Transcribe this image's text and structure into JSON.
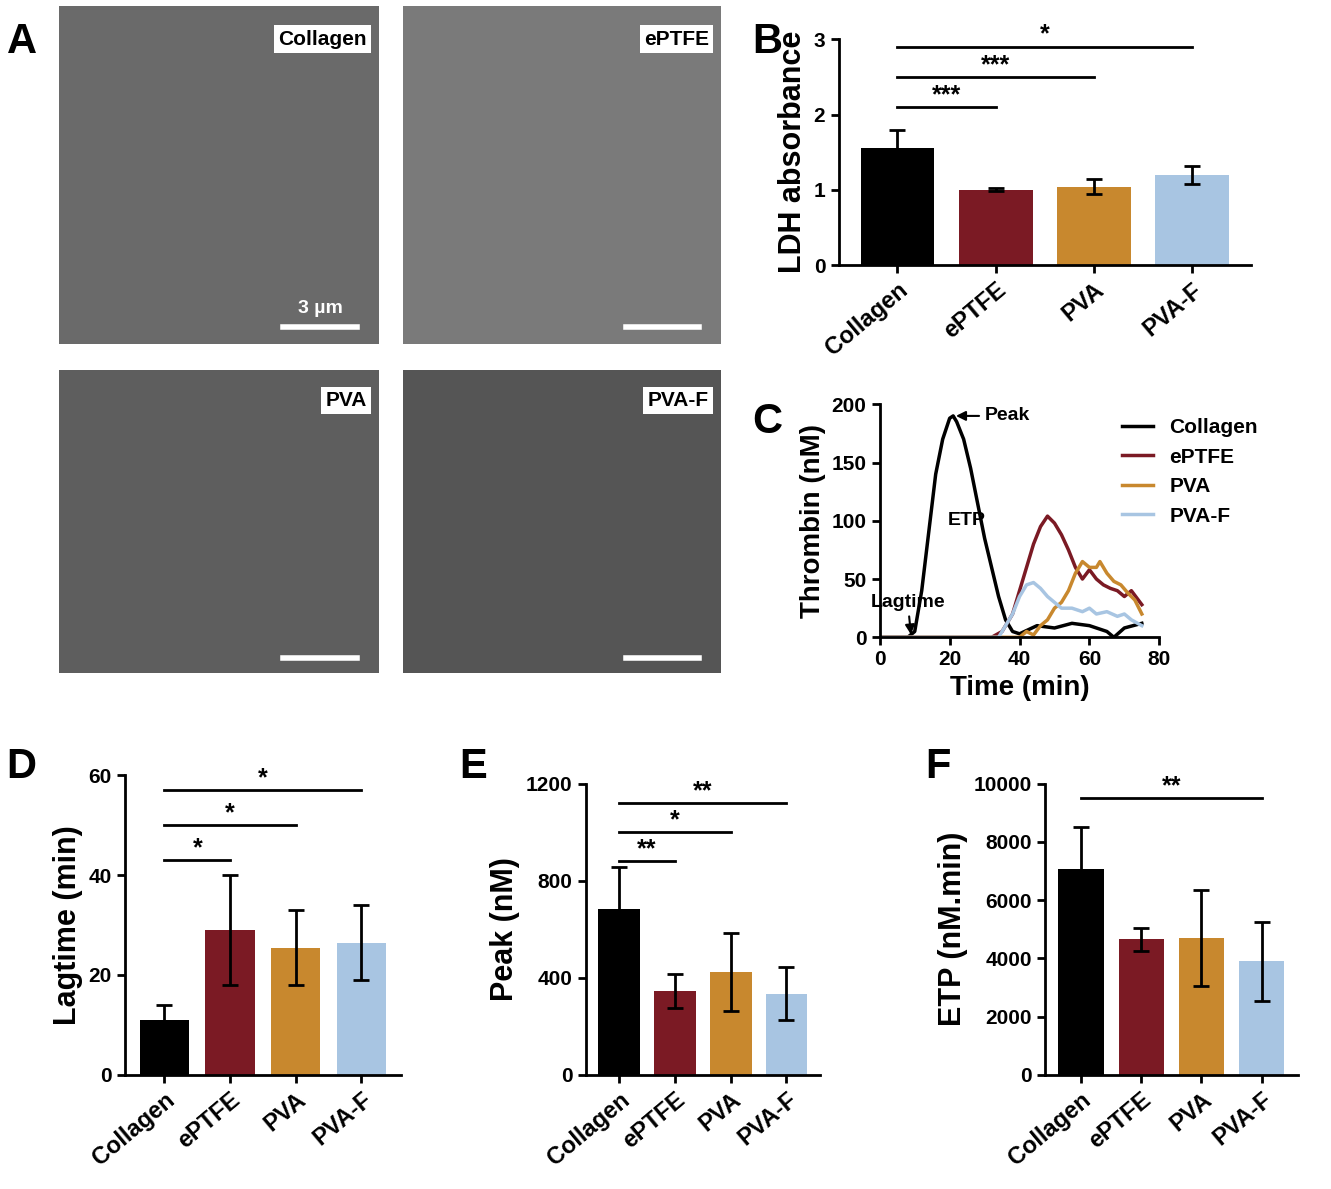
{
  "chart_data": [
    {
      "type": "image",
      "panel": "A",
      "images": [
        {
          "label": "Collagen",
          "scale_bar": "3 µm"
        },
        {
          "label": "ePTFE"
        },
        {
          "label": "PVA"
        },
        {
          "label": "PVA-F"
        }
      ]
    },
    {
      "type": "bar",
      "panel": "B",
      "y_label": "LDH absorbance",
      "categories": [
        "Collagen",
        "ePTFE",
        "PVA",
        "PVA-F"
      ],
      "values": [
        1.55,
        1.0,
        1.04,
        1.2
      ],
      "errors": [
        0.25,
        0.02,
        0.1,
        0.12
      ],
      "colors": [
        "#000000",
        "#7b1a24",
        "#c8882e",
        "#a8c5e2"
      ],
      "ylim": [
        0,
        3
      ],
      "yticks": [
        0,
        1,
        2,
        3
      ],
      "comparisons": [
        {
          "pair": [
            "Collagen",
            "ePTFE"
          ],
          "label": "***",
          "y": 2.1
        },
        {
          "pair": [
            "Collagen",
            "PVA"
          ],
          "label": "***",
          "y": 2.5
        },
        {
          "pair": [
            "Collagen",
            "PVA-F"
          ],
          "label": "*",
          "y": 2.9
        }
      ]
    },
    {
      "type": "line",
      "panel": "C",
      "x_label": "Time (min)",
      "y_label": "Thrombin (nM)",
      "xlim": [
        0,
        80
      ],
      "xticks": [
        0,
        20,
        40,
        60,
        80
      ],
      "ylim": [
        0,
        200
      ],
      "yticks": [
        0,
        50,
        100,
        150,
        200
      ],
      "legend": "upper right",
      "series": [
        {
          "name": "Collagen",
          "color": "#000000",
          "x": [
            0,
            8,
            10,
            12,
            14,
            16,
            18,
            20,
            21,
            22,
            24,
            26,
            28,
            30,
            32,
            34,
            36,
            38,
            40,
            45,
            50,
            55,
            60,
            65,
            67,
            70,
            75
          ],
          "values": [
            0,
            0,
            5,
            40,
            90,
            140,
            170,
            188,
            190,
            185,
            170,
            145,
            115,
            85,
            60,
            35,
            15,
            5,
            3,
            10,
            8,
            12,
            10,
            5,
            0,
            8,
            12
          ]
        },
        {
          "name": "ePTFE",
          "color": "#7b1a24",
          "x": [
            0,
            32,
            35,
            38,
            40,
            42,
            44,
            46,
            48,
            50,
            52,
            54,
            56,
            58,
            60,
            62,
            64,
            66,
            68,
            70,
            72,
            75
          ],
          "values": [
            0,
            0,
            5,
            20,
            40,
            60,
            80,
            95,
            104,
            98,
            88,
            75,
            60,
            50,
            58,
            50,
            45,
            42,
            40,
            35,
            40,
            28
          ]
        },
        {
          "name": "PVA",
          "color": "#c8882e",
          "x": [
            0,
            40,
            42,
            44,
            46,
            48,
            50,
            52,
            54,
            56,
            58,
            60,
            62,
            63,
            65,
            67,
            69,
            71,
            73,
            75
          ],
          "values": [
            0,
            0,
            5,
            2,
            10,
            15,
            25,
            30,
            40,
            55,
            65,
            60,
            60,
            65,
            55,
            48,
            45,
            38,
            32,
            20
          ]
        },
        {
          "name": "PVA-F",
          "color": "#a8c5e2",
          "x": [
            0,
            34,
            36,
            38,
            40,
            42,
            44,
            46,
            48,
            50,
            52,
            55,
            58,
            60,
            62,
            65,
            68,
            70,
            72,
            75
          ],
          "values": [
            0,
            0,
            10,
            20,
            35,
            45,
            47,
            42,
            35,
            30,
            25,
            25,
            22,
            25,
            20,
            22,
            18,
            20,
            15,
            10
          ]
        }
      ],
      "annotations": [
        {
          "text": "Peak",
          "x": 30,
          "y": 190,
          "target": [
            21,
            190
          ]
        },
        {
          "text": "ETP",
          "x": 25,
          "y": 100
        },
        {
          "text": "Lagtime",
          "x": 8,
          "y": 30,
          "target": [
            9,
            0
          ]
        }
      ]
    },
    {
      "type": "bar",
      "panel": "D",
      "y_label": "Lagtime (min)",
      "categories": [
        "Collagen",
        "ePTFE",
        "PVA",
        "PVA-F"
      ],
      "values": [
        11,
        29,
        25.5,
        26.5
      ],
      "errors": [
        3,
        11,
        7.5,
        7.5
      ],
      "colors": [
        "#000000",
        "#7b1a24",
        "#c8882e",
        "#a8c5e2"
      ],
      "ylim": [
        0,
        60
      ],
      "yticks": [
        0,
        20,
        40,
        60
      ],
      "comparisons": [
        {
          "pair": [
            "Collagen",
            "ePTFE"
          ],
          "label": "*",
          "y": 43
        },
        {
          "pair": [
            "Collagen",
            "PVA"
          ],
          "label": "*",
          "y": 50
        },
        {
          "pair": [
            "Collagen",
            "PVA-F"
          ],
          "label": "*",
          "y": 57
        }
      ]
    },
    {
      "type": "bar",
      "panel": "E",
      "y_label": "Peak (nM)",
      "categories": [
        "Collagen",
        "ePTFE",
        "PVA",
        "PVA-F"
      ],
      "values": [
        685,
        345,
        425,
        335
      ],
      "errors": [
        170,
        70,
        160,
        110
      ],
      "colors": [
        "#000000",
        "#7b1a24",
        "#c8882e",
        "#a8c5e2"
      ],
      "ylim": [
        0,
        1200
      ],
      "yticks": [
        0,
        400,
        800,
        1200
      ],
      "comparisons": [
        {
          "pair": [
            "Collagen",
            "ePTFE"
          ],
          "label": "**",
          "y": 880
        },
        {
          "pair": [
            "Collagen",
            "PVA"
          ],
          "label": "*",
          "y": 1000
        },
        {
          "pair": [
            "Collagen",
            "PVA-F"
          ],
          "label": "**",
          "y": 1120
        }
      ]
    },
    {
      "type": "bar",
      "panel": "F",
      "y_label": "ETP (nM.min)",
      "categories": [
        "Collagen",
        "ePTFE",
        "PVA",
        "PVA-F"
      ],
      "values": [
        7050,
        4650,
        4700,
        3900
      ],
      "errors": [
        1450,
        400,
        1650,
        1350
      ],
      "colors": [
        "#000000",
        "#7b1a24",
        "#c8882e",
        "#a8c5e2"
      ],
      "ylim": [
        0,
        10000
      ],
      "yticks": [
        0,
        2000,
        4000,
        6000,
        8000,
        10000
      ],
      "comparisons": [
        {
          "pair": [
            "Collagen",
            "PVA-F"
          ],
          "label": "**",
          "y": 9500
        }
      ]
    }
  ]
}
